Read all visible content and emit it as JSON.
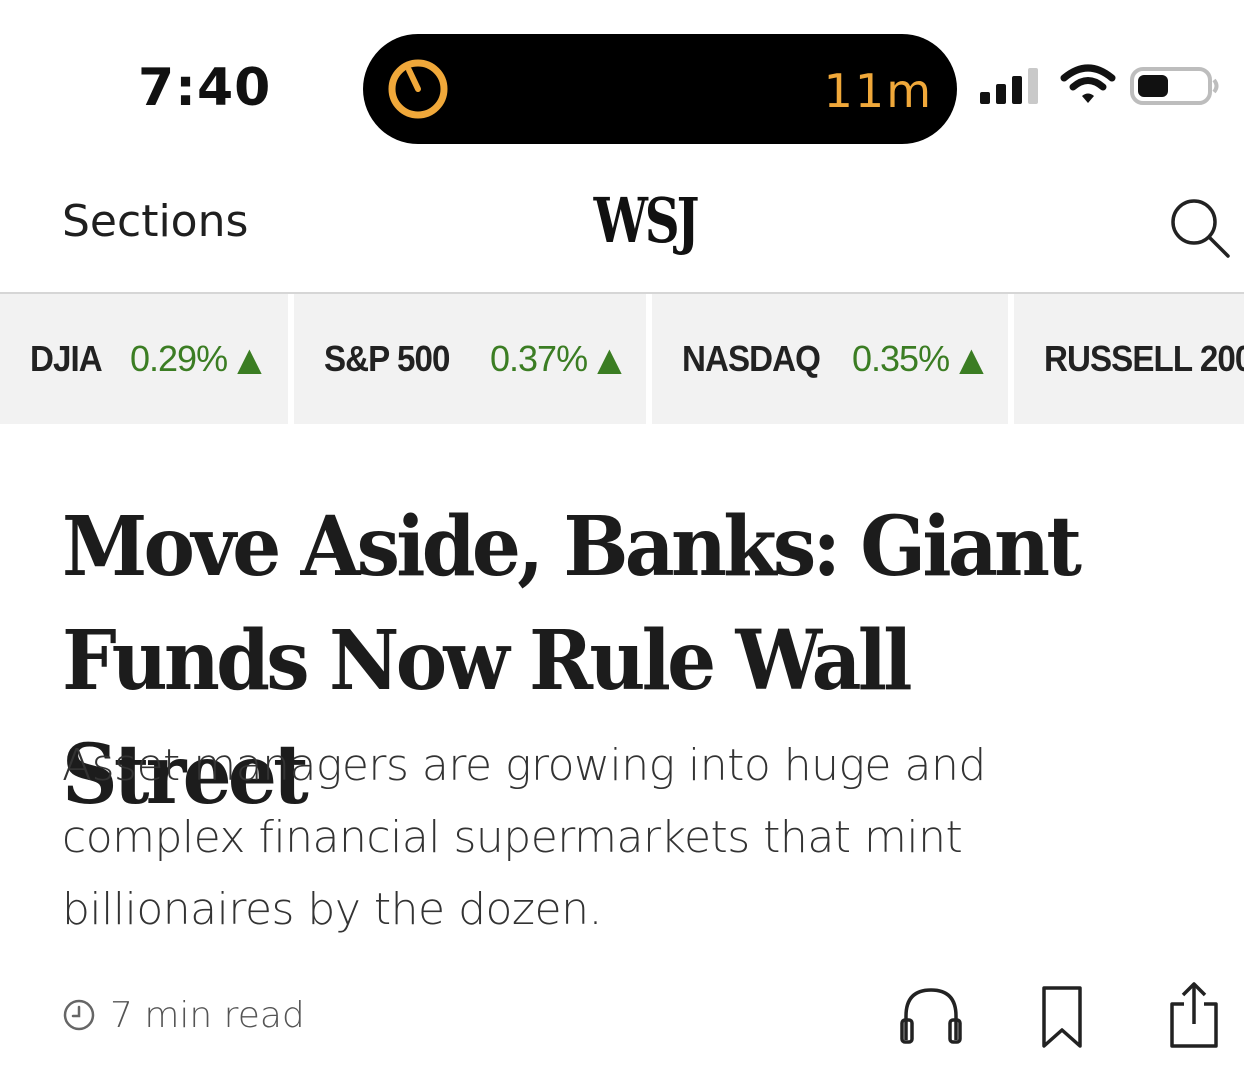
{
  "status_bar": {
    "time": "7:40",
    "live_activity_timer": "11m",
    "accent_color": "#f0a83a",
    "icons": [
      "timer-icon",
      "cellular-signal-icon",
      "wifi-icon",
      "battery-icon"
    ]
  },
  "header": {
    "sections_label": "Sections",
    "logo": "WSJ",
    "search_icon": "search-icon"
  },
  "ticker": {
    "up_color": "#3b7d23",
    "items": [
      {
        "name": "DJIA",
        "change": "0.29%",
        "direction": "up"
      },
      {
        "name": "S&P 500",
        "change": "0.37%",
        "direction": "up"
      },
      {
        "name": "NASDAQ",
        "change": "0.35%",
        "direction": "up"
      },
      {
        "name": "RUSSELL 200",
        "change": "",
        "direction": ""
      }
    ]
  },
  "article": {
    "headline": "Move Aside, Banks: Giant Funds Now Rule Wall Street",
    "dek": "Asset managers are growing into huge and complex financial supermarkets that mint billionaires by the dozen.",
    "read_time": "7 min read",
    "actions": [
      "headphones-icon",
      "bookmark-icon",
      "share-icon"
    ]
  }
}
